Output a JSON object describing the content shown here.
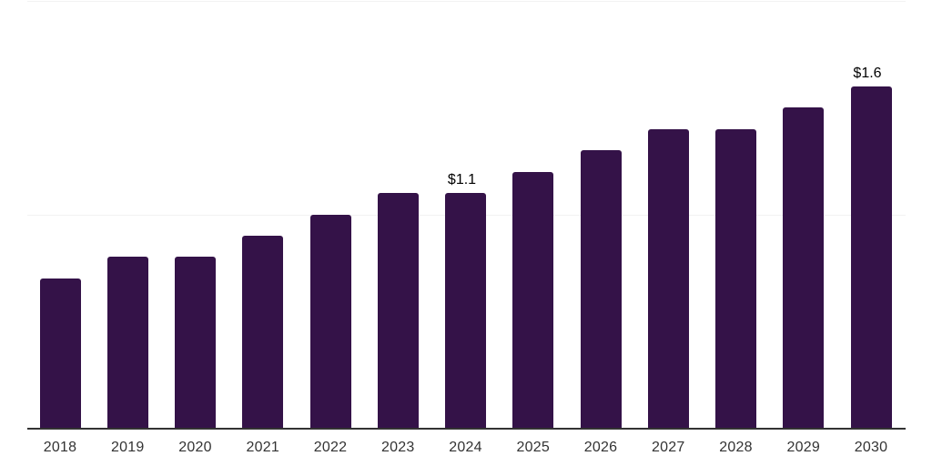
{
  "chart_data": {
    "type": "bar",
    "title": "",
    "xlabel": "",
    "ylabel": "",
    "categories": [
      "2018",
      "2019",
      "2020",
      "2021",
      "2022",
      "2023",
      "2024",
      "2025",
      "2026",
      "2027",
      "2028",
      "2029",
      "2030"
    ],
    "values": [
      0.7,
      0.8,
      0.8,
      0.9,
      1.0,
      1.1,
      1.1,
      1.2,
      1.3,
      1.4,
      1.4,
      1.5,
      1.6
    ],
    "bar_labels": [
      "",
      "",
      "",
      "",
      "",
      "",
      "$1.1",
      "",
      "",
      "",
      "",
      "",
      "$1.6"
    ],
    "ylim": [
      0,
      2.0
    ],
    "gridline_values": [
      1.0,
      2.0
    ],
    "grid": "horizontal-only",
    "legend": "none",
    "colors": {
      "bar": "#341248",
      "gridline": "#f2f2f2",
      "axis_line": "#333333",
      "tick_label": "#333333",
      "value_label": "#000000",
      "background": "#ffffff"
    }
  }
}
